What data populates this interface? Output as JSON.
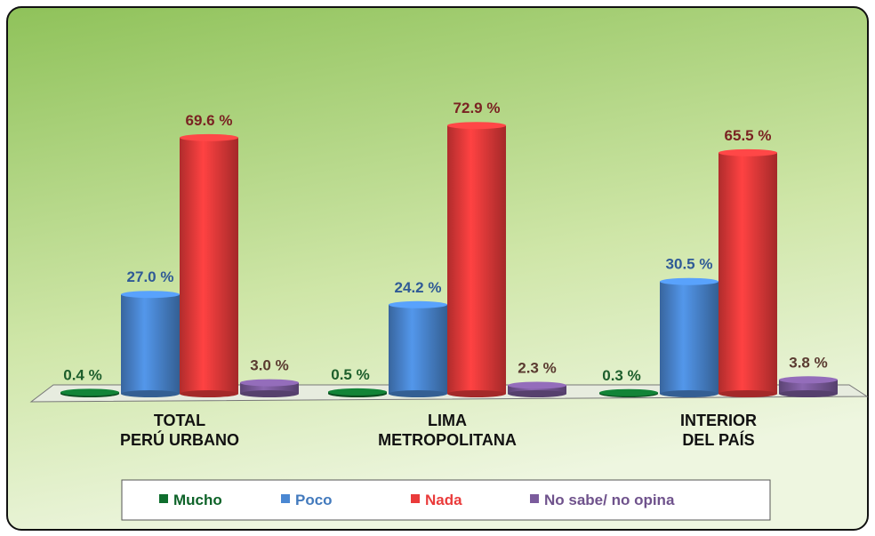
{
  "chart_data": {
    "type": "bar",
    "categories": [
      "TOTAL\nPERÚ URBANO",
      "LIMA\nMETROPOLITANA",
      "INTERIOR\nDEL PAÍS"
    ],
    "series": [
      {
        "name": "Mucho",
        "color": "#0f6e2e",
        "label_color": "#1d5e2c",
        "values": [
          0.4,
          0.5,
          0.3
        ],
        "value_labels": [
          "0.4 %",
          "0.5 %",
          "0.3 %"
        ]
      },
      {
        "name": "Poco",
        "color": "#4a87d2",
        "label_color": "#2f5a96",
        "values": [
          27.0,
          24.2,
          30.5
        ],
        "value_labels": [
          "27.0 %",
          "24.2 %",
          "30.5 %"
        ]
      },
      {
        "name": "Nada",
        "color": "#ea3b3b",
        "label_color": "#7a2222",
        "values": [
          69.6,
          72.9,
          65.5
        ],
        "value_labels": [
          "69.6 %",
          "72.9 %",
          "65.5 %"
        ]
      },
      {
        "name": "No sabe/ no opina",
        "color": "#7b5b9c",
        "label_color": "#5a3a30",
        "values": [
          3.0,
          2.3,
          3.8
        ],
        "value_labels": [
          "3.0 %",
          "2.3 %",
          "3.8 %"
        ]
      }
    ],
    "legend": "bottom"
  }
}
